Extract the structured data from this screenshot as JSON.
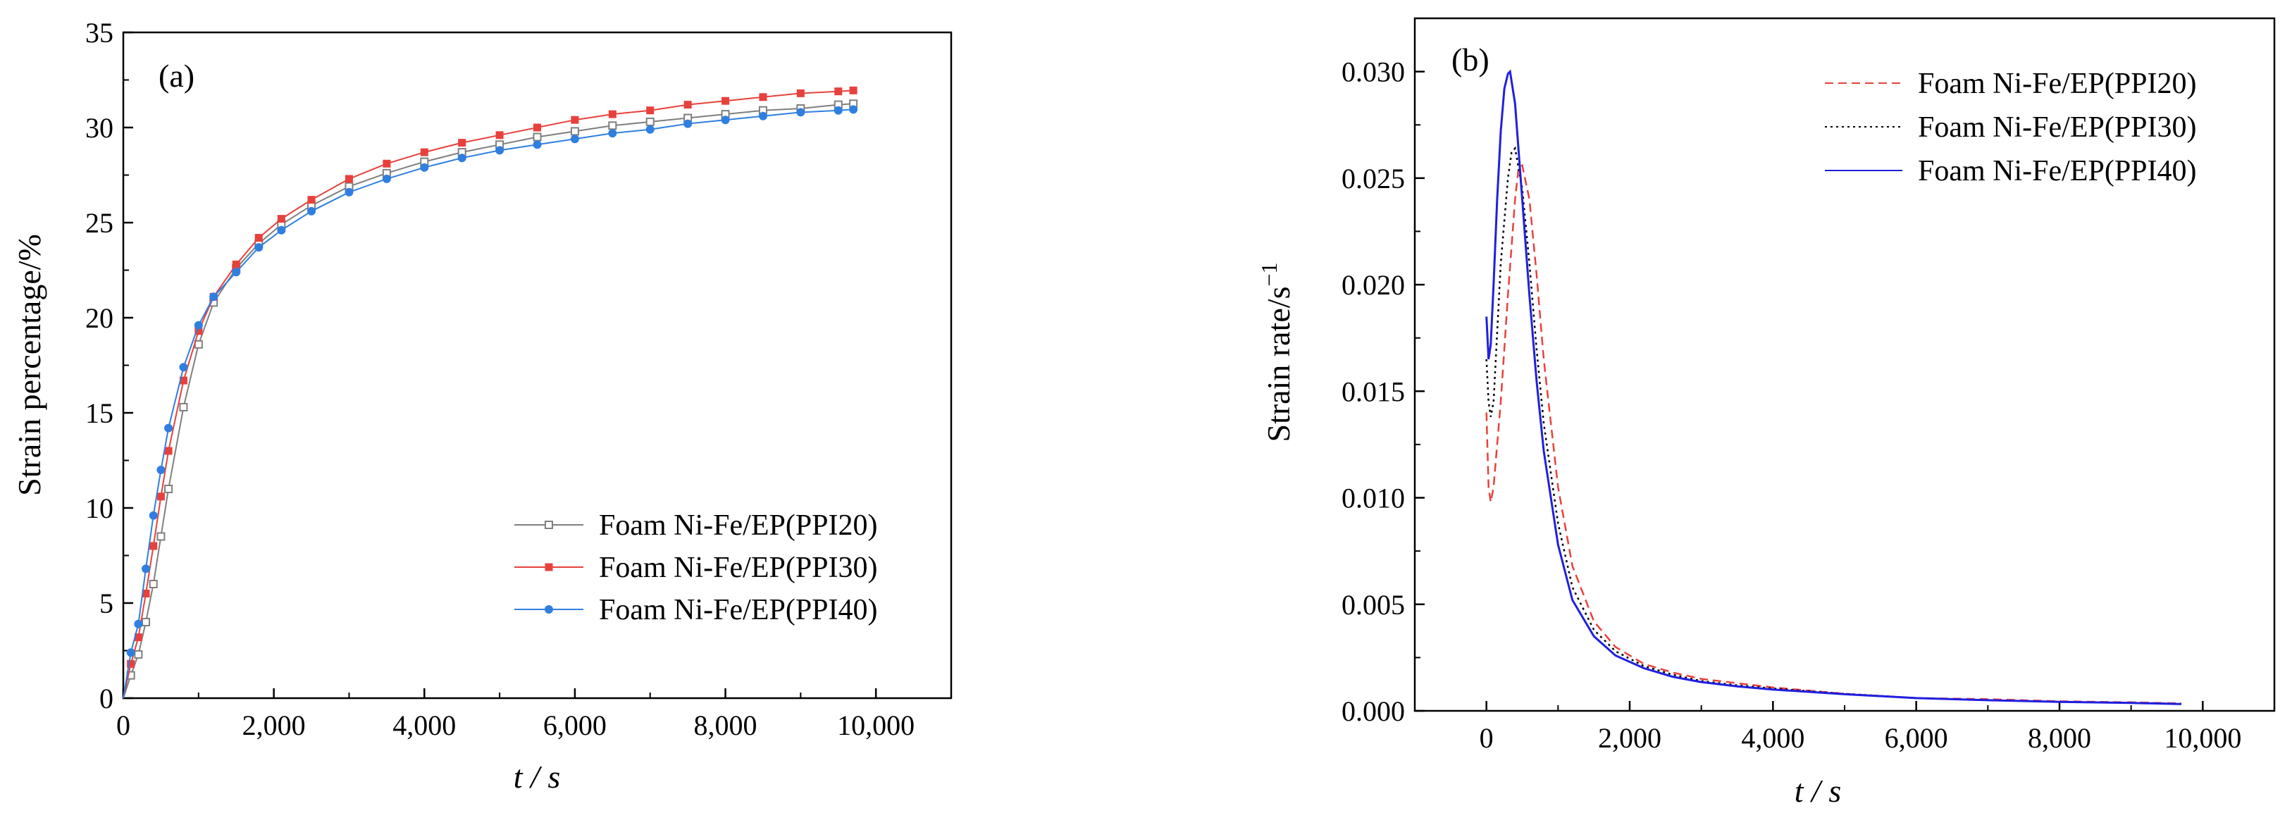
{
  "chart_data": [
    {
      "type": "line",
      "panel_label": "(a)",
      "xlabel": "t / s",
      "ylabel": "Strain percentage/%",
      "xlim": [
        0,
        11000
      ],
      "ylim": [
        0,
        35
      ],
      "x_ticks": [
        0,
        2000,
        4000,
        6000,
        8000,
        10000
      ],
      "x_tick_labels": [
        "0",
        "2,000",
        "4,000",
        "6,000",
        "8,000",
        "10,000"
      ],
      "y_ticks": [
        0,
        5,
        10,
        15,
        20,
        25,
        30,
        35
      ],
      "y_tick_labels": [
        "0",
        "5",
        "10",
        "15",
        "20",
        "25",
        "30",
        "35"
      ],
      "legend_position": "center-right",
      "x": [
        0,
        100,
        200,
        300,
        400,
        500,
        600,
        800,
        1000,
        1200,
        1500,
        1800,
        2100,
        2500,
        3000,
        3500,
        4000,
        4500,
        5000,
        5500,
        6000,
        6500,
        7000,
        7500,
        8000,
        8500,
        9000,
        9500,
        9700
      ],
      "series": [
        {
          "name": "Foam Ni-Fe/EP(PPI20)",
          "color": "#7f7f7f",
          "marker": "open-square",
          "values": [
            0,
            1.2,
            2.3,
            4.0,
            6.0,
            8.5,
            11.0,
            15.3,
            18.6,
            20.8,
            22.6,
            23.9,
            24.9,
            25.9,
            26.9,
            27.6,
            28.2,
            28.7,
            29.1,
            29.5,
            29.8,
            30.1,
            30.3,
            30.5,
            30.7,
            30.9,
            31.0,
            31.2,
            31.25
          ]
        },
        {
          "name": "Foam Ni-Fe/EP(PPI30)",
          "color": "#e8413c",
          "marker": "filled-square",
          "values": [
            0,
            1.8,
            3.2,
            5.5,
            8.0,
            10.6,
            13.0,
            16.7,
            19.3,
            21.1,
            22.8,
            24.2,
            25.2,
            26.2,
            27.3,
            28.1,
            28.7,
            29.2,
            29.6,
            30.0,
            30.4,
            30.7,
            30.9,
            31.2,
            31.4,
            31.6,
            31.8,
            31.9,
            31.95
          ]
        },
        {
          "name": "Foam Ni-Fe/EP(PPI40)",
          "color": "#2f7fe0",
          "marker": "filled-circle",
          "values": [
            0,
            2.4,
            3.9,
            6.8,
            9.6,
            12.0,
            14.2,
            17.4,
            19.6,
            21.1,
            22.4,
            23.7,
            24.6,
            25.6,
            26.6,
            27.3,
            27.9,
            28.4,
            28.8,
            29.1,
            29.4,
            29.7,
            29.9,
            30.2,
            30.4,
            30.6,
            30.8,
            30.9,
            30.95
          ]
        }
      ]
    },
    {
      "type": "line",
      "panel_label": "(b)",
      "xlabel": "t / s",
      "ylabel": "Strain rate/s",
      "ylabel_exponent": "−1",
      "xlim": [
        -1000,
        11000
      ],
      "ylim": [
        0,
        0.0325
      ],
      "x_ticks": [
        0,
        2000,
        4000,
        6000,
        8000,
        10000
      ],
      "x_tick_labels": [
        "0",
        "2,000",
        "4,000",
        "6,000",
        "8,000",
        "10,000"
      ],
      "y_ticks": [
        0,
        0.005,
        0.01,
        0.015,
        0.02,
        0.025,
        0.03
      ],
      "y_tick_labels": [
        "0.000",
        "0.005",
        "0.010",
        "0.015",
        "0.020",
        "0.025",
        "0.030"
      ],
      "legend_position": "top-right",
      "series": [
        {
          "name": "Foam Ni-Fe/EP(PPI20)",
          "color": "#e8413c",
          "line_style": "dashed",
          "x": [
            0,
            30,
            60,
            100,
            200,
            300,
            400,
            450,
            500,
            600,
            700,
            800,
            1000,
            1200,
            1500,
            1800,
            2200,
            2600,
            3000,
            3500,
            4000,
            5000,
            6000,
            7000,
            8000,
            9000,
            9700
          ],
          "y": [
            0.014,
            0.0105,
            0.0098,
            0.0105,
            0.0145,
            0.0195,
            0.024,
            0.0255,
            0.0256,
            0.024,
            0.0205,
            0.0165,
            0.0105,
            0.0068,
            0.0042,
            0.003,
            0.0022,
            0.0018,
            0.0015,
            0.0013,
            0.0011,
            0.0008,
            0.0006,
            0.00055,
            0.00045,
            0.0004,
            0.00035
          ]
        },
        {
          "name": "Foam Ni-Fe/EP(PPI30)",
          "color": "#000000",
          "line_style": "dotted",
          "x": [
            0,
            30,
            60,
            100,
            200,
            300,
            350,
            400,
            500,
            600,
            700,
            800,
            1000,
            1200,
            1500,
            1800,
            2200,
            2600,
            3000,
            3500,
            4000,
            5000,
            6000,
            7000,
            8000,
            9000,
            9700
          ],
          "y": [
            0.0165,
            0.0145,
            0.0138,
            0.0145,
            0.021,
            0.025,
            0.0262,
            0.0264,
            0.0245,
            0.021,
            0.017,
            0.0135,
            0.0088,
            0.0058,
            0.0038,
            0.0028,
            0.0021,
            0.0017,
            0.0014,
            0.0012,
            0.00105,
            0.0008,
            0.0006,
            0.0005,
            0.00042,
            0.00038,
            0.00033
          ]
        },
        {
          "name": "Foam Ni-Fe/EP(PPI40)",
          "color": "#1f1fe0",
          "line_style": "solid",
          "x": [
            0,
            30,
            60,
            100,
            150,
            200,
            250,
            300,
            330,
            400,
            500,
            600,
            700,
            800,
            1000,
            1200,
            1500,
            1800,
            2200,
            2600,
            3000,
            3500,
            4000,
            5000,
            6000,
            7000,
            8000,
            9000,
            9700
          ],
          "y": [
            0.0185,
            0.0165,
            0.0172,
            0.02,
            0.024,
            0.0272,
            0.0292,
            0.0299,
            0.03,
            0.0285,
            0.024,
            0.0195,
            0.0155,
            0.0122,
            0.0078,
            0.0052,
            0.0035,
            0.0026,
            0.002,
            0.0016,
            0.00135,
            0.00115,
            0.001,
            0.00078,
            0.0006,
            0.0005,
            0.00042,
            0.00037,
            0.00032
          ]
        }
      ]
    }
  ]
}
